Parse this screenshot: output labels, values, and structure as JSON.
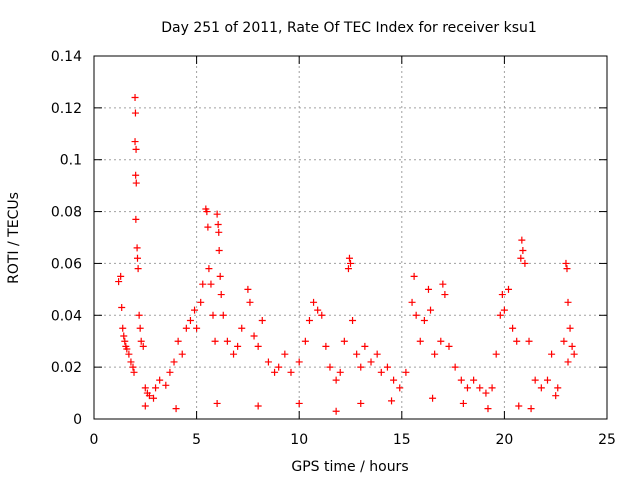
{
  "chart_data": {
    "type": "scatter",
    "title": "Day 251 of 2011, Rate Of TEC Index for receiver ksu1",
    "xlabel": "GPS time / hours",
    "ylabel": "ROTI / TECUs",
    "xlim": [
      0,
      25
    ],
    "ylim": [
      0,
      0.14
    ],
    "x_ticks": [
      "0",
      "5",
      "10",
      "15",
      "20",
      "25"
    ],
    "y_ticks": [
      "0",
      "0.02",
      "0.04",
      "0.06",
      "0.08",
      "0.1",
      "0.12",
      "0.14"
    ],
    "grid": true,
    "marker": "+",
    "color": "#ff0000",
    "series": [
      {
        "points": [
          [
            1.2,
            0.053
          ],
          [
            1.3,
            0.055
          ],
          [
            1.35,
            0.043
          ],
          [
            1.4,
            0.035
          ],
          [
            1.45,
            0.032
          ],
          [
            1.5,
            0.03
          ],
          [
            1.55,
            0.028
          ],
          [
            1.6,
            0.027
          ],
          [
            1.7,
            0.025
          ],
          [
            1.8,
            0.022
          ],
          [
            1.9,
            0.02
          ],
          [
            1.95,
            0.018
          ],
          [
            2.0,
            0.124
          ],
          [
            2.02,
            0.118
          ],
          [
            2.0,
            0.107
          ],
          [
            2.05,
            0.104
          ],
          [
            2.03,
            0.094
          ],
          [
            2.06,
            0.091
          ],
          [
            2.04,
            0.077
          ],
          [
            2.1,
            0.066
          ],
          [
            2.12,
            0.062
          ],
          [
            2.15,
            0.058
          ],
          [
            2.2,
            0.04
          ],
          [
            2.25,
            0.035
          ],
          [
            2.3,
            0.03
          ],
          [
            2.4,
            0.028
          ],
          [
            2.5,
            0.012
          ],
          [
            2.6,
            0.01
          ],
          [
            2.7,
            0.009
          ],
          [
            2.9,
            0.008
          ],
          [
            3.0,
            0.012
          ],
          [
            3.2,
            0.015
          ],
          [
            3.5,
            0.013
          ],
          [
            3.7,
            0.018
          ],
          [
            3.9,
            0.022
          ],
          [
            4.1,
            0.03
          ],
          [
            4.3,
            0.025
          ],
          [
            4.5,
            0.035
          ],
          [
            4.7,
            0.038
          ],
          [
            4.9,
            0.042
          ],
          [
            5.0,
            0.035
          ],
          [
            5.2,
            0.045
          ],
          [
            5.3,
            0.052
          ],
          [
            5.45,
            0.081
          ],
          [
            5.5,
            0.08
          ],
          [
            5.55,
            0.074
          ],
          [
            5.6,
            0.058
          ],
          [
            5.7,
            0.052
          ],
          [
            5.8,
            0.04
          ],
          [
            5.9,
            0.03
          ],
          [
            6.0,
            0.079
          ],
          [
            6.05,
            0.075
          ],
          [
            6.08,
            0.072
          ],
          [
            6.1,
            0.065
          ],
          [
            6.15,
            0.055
          ],
          [
            6.2,
            0.048
          ],
          [
            6.3,
            0.04
          ],
          [
            6.5,
            0.03
          ],
          [
            6.8,
            0.025
          ],
          [
            7.0,
            0.028
          ],
          [
            7.2,
            0.035
          ],
          [
            7.5,
            0.05
          ],
          [
            7.6,
            0.045
          ],
          [
            7.8,
            0.032
          ],
          [
            8.0,
            0.028
          ],
          [
            8.2,
            0.038
          ],
          [
            8.5,
            0.022
          ],
          [
            8.8,
            0.018
          ],
          [
            9.0,
            0.02
          ],
          [
            9.3,
            0.025
          ],
          [
            9.6,
            0.018
          ],
          [
            10.0,
            0.022
          ],
          [
            10.3,
            0.03
          ],
          [
            10.5,
            0.038
          ],
          [
            10.7,
            0.045
          ],
          [
            10.9,
            0.042
          ],
          [
            11.1,
            0.04
          ],
          [
            11.3,
            0.028
          ],
          [
            11.5,
            0.02
          ],
          [
            11.8,
            0.015
          ],
          [
            12.0,
            0.018
          ],
          [
            12.2,
            0.03
          ],
          [
            12.4,
            0.058
          ],
          [
            12.45,
            0.062
          ],
          [
            12.5,
            0.06
          ],
          [
            12.6,
            0.038
          ],
          [
            12.8,
            0.025
          ],
          [
            13.0,
            0.02
          ],
          [
            13.2,
            0.028
          ],
          [
            13.5,
            0.022
          ],
          [
            13.8,
            0.025
          ],
          [
            14.0,
            0.018
          ],
          [
            14.3,
            0.02
          ],
          [
            14.6,
            0.015
          ],
          [
            14.9,
            0.012
          ],
          [
            15.2,
            0.018
          ],
          [
            15.5,
            0.045
          ],
          [
            15.6,
            0.055
          ],
          [
            15.7,
            0.04
          ],
          [
            15.9,
            0.03
          ],
          [
            16.1,
            0.038
          ],
          [
            16.3,
            0.05
          ],
          [
            16.4,
            0.042
          ],
          [
            16.6,
            0.025
          ],
          [
            16.9,
            0.03
          ],
          [
            17.0,
            0.052
          ],
          [
            17.1,
            0.048
          ],
          [
            17.3,
            0.028
          ],
          [
            17.6,
            0.02
          ],
          [
            17.9,
            0.015
          ],
          [
            18.2,
            0.012
          ],
          [
            18.5,
            0.015
          ],
          [
            18.8,
            0.012
          ],
          [
            19.1,
            0.01
          ],
          [
            19.4,
            0.012
          ],
          [
            19.6,
            0.025
          ],
          [
            19.8,
            0.04
          ],
          [
            19.9,
            0.048
          ],
          [
            20.0,
            0.042
          ],
          [
            20.2,
            0.05
          ],
          [
            20.4,
            0.035
          ],
          [
            20.6,
            0.03
          ],
          [
            20.8,
            0.062
          ],
          [
            20.85,
            0.069
          ],
          [
            20.9,
            0.065
          ],
          [
            21.0,
            0.06
          ],
          [
            21.2,
            0.03
          ],
          [
            21.5,
            0.015
          ],
          [
            21.8,
            0.012
          ],
          [
            22.1,
            0.015
          ],
          [
            22.3,
            0.025
          ],
          [
            22.6,
            0.012
          ],
          [
            22.9,
            0.03
          ],
          [
            23.0,
            0.06
          ],
          [
            23.05,
            0.058
          ],
          [
            23.1,
            0.045
          ],
          [
            23.2,
            0.035
          ],
          [
            23.3,
            0.028
          ],
          [
            23.4,
            0.025
          ],
          [
            23.1,
            0.022
          ],
          [
            2.5,
            0.005
          ],
          [
            4.0,
            0.004
          ],
          [
            6.0,
            0.006
          ],
          [
            8.0,
            0.005
          ],
          [
            10.0,
            0.006
          ],
          [
            11.8,
            0.003
          ],
          [
            13.0,
            0.006
          ],
          [
            14.5,
            0.007
          ],
          [
            16.5,
            0.008
          ],
          [
            18.0,
            0.006
          ],
          [
            19.2,
            0.004
          ],
          [
            20.7,
            0.005
          ],
          [
            21.3,
            0.004
          ],
          [
            22.5,
            0.009
          ]
        ]
      }
    ]
  }
}
